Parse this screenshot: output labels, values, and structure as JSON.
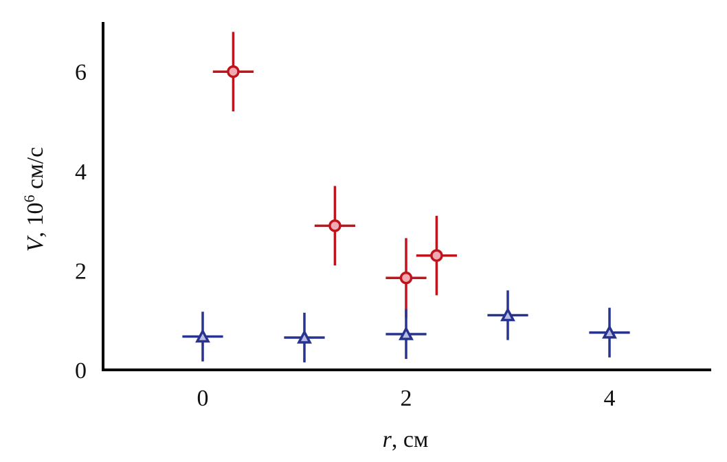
{
  "chart_data": {
    "type": "scatter",
    "title": "",
    "xlabel_var": "r",
    "xlabel_unit": ", см",
    "ylabel_var": "V",
    "ylabel_unit_pre": ", 10",
    "ylabel_exp": "6",
    "ylabel_unit_post": " см/с",
    "xlim": [
      -1,
      5
    ],
    "ylim": [
      0,
      7
    ],
    "xticks": [
      0,
      2,
      4
    ],
    "yticks": [
      0,
      2,
      4,
      6
    ],
    "grid": false,
    "series": [
      {
        "name": "circles",
        "marker": "circle",
        "color": "#c0141c",
        "fill": "#f2aab2",
        "points": [
          {
            "x": 0.3,
            "y": 6.0,
            "xerr": 0.2,
            "yerr": 0.8
          },
          {
            "x": 1.3,
            "y": 2.9,
            "xerr": 0.2,
            "yerr": 0.8
          },
          {
            "x": 2.0,
            "y": 1.85,
            "xerr": 0.2,
            "yerr": 0.8
          },
          {
            "x": 2.3,
            "y": 2.3,
            "xerr": 0.2,
            "yerr": 0.8
          }
        ]
      },
      {
        "name": "triangles",
        "marker": "triangle",
        "color": "#27338f",
        "fill": "#b9bde2",
        "points": [
          {
            "x": 0.0,
            "y": 0.67,
            "xerr": 0.2,
            "yerr": 0.5
          },
          {
            "x": 1.0,
            "y": 0.65,
            "xerr": 0.2,
            "yerr": 0.5
          },
          {
            "x": 2.0,
            "y": 0.72,
            "xerr": 0.2,
            "yerr": 0.5
          },
          {
            "x": 3.0,
            "y": 1.1,
            "xerr": 0.2,
            "yerr": 0.5
          },
          {
            "x": 4.0,
            "y": 0.75,
            "xerr": 0.2,
            "yerr": 0.5
          }
        ]
      }
    ]
  }
}
